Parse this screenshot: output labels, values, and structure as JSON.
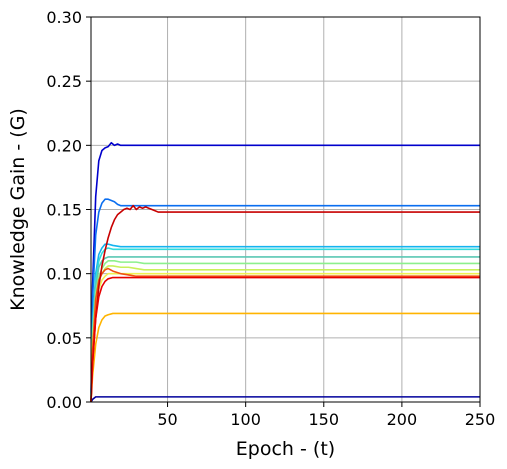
{
  "chart_data": {
    "type": "line",
    "title": "",
    "xlabel": "Epoch - (t)",
    "ylabel": "Knowledge Gain - (G)",
    "xlim": [
      1,
      250
    ],
    "ylim": [
      0,
      0.3
    ],
    "xticks": [
      50,
      100,
      150,
      200,
      250
    ],
    "yticks": [
      0.0,
      0.05,
      0.1,
      0.15,
      0.2,
      0.25,
      0.3
    ],
    "ytick_labels": [
      "0.00",
      "0.05",
      "0.10",
      "0.15",
      "0.20",
      "0.25",
      "0.30"
    ],
    "grid": true,
    "legend": "none",
    "series": [
      {
        "color": "#00009c",
        "x": [
          1,
          2,
          3,
          4,
          250
        ],
        "values": [
          0.0,
          0.002,
          0.003,
          0.004,
          0.004
        ]
      },
      {
        "color": "#0000cc",
        "x": [
          1,
          2,
          4,
          6,
          8,
          10,
          12,
          14,
          16,
          18,
          20,
          25,
          30,
          250
        ],
        "values": [
          0.0,
          0.09,
          0.16,
          0.188,
          0.196,
          0.198,
          0.199,
          0.202,
          0.2,
          0.201,
          0.2,
          0.2,
          0.2,
          0.2
        ]
      },
      {
        "color": "#0a6ef0",
        "x": [
          1,
          2,
          4,
          6,
          8,
          10,
          12,
          14,
          16,
          18,
          20,
          25,
          30,
          250
        ],
        "values": [
          0.0,
          0.08,
          0.13,
          0.148,
          0.155,
          0.158,
          0.158,
          0.157,
          0.156,
          0.154,
          0.153,
          0.153,
          0.153,
          0.153
        ]
      },
      {
        "color": "#14b4f0",
        "x": [
          1,
          2,
          4,
          6,
          8,
          10,
          12,
          15,
          20,
          30,
          250
        ],
        "values": [
          0.0,
          0.06,
          0.1,
          0.115,
          0.12,
          0.123,
          0.123,
          0.122,
          0.121,
          0.121,
          0.121
        ]
      },
      {
        "color": "#32dcdc",
        "x": [
          1,
          2,
          4,
          6,
          8,
          10,
          12,
          15,
          20,
          30,
          250
        ],
        "values": [
          0.0,
          0.055,
          0.095,
          0.11,
          0.116,
          0.119,
          0.12,
          0.119,
          0.119,
          0.119,
          0.119
        ]
      },
      {
        "color": "#5ac8b4",
        "x": [
          1,
          2,
          4,
          6,
          8,
          10,
          12,
          15,
          20,
          30,
          250
        ],
        "values": [
          0.0,
          0.05,
          0.09,
          0.105,
          0.11,
          0.112,
          0.113,
          0.113,
          0.113,
          0.113,
          0.113
        ]
      },
      {
        "color": "#8cf08c",
        "x": [
          1,
          2,
          4,
          6,
          8,
          10,
          12,
          16,
          20,
          25,
          30,
          35,
          250
        ],
        "values": [
          0.0,
          0.05,
          0.085,
          0.098,
          0.104,
          0.108,
          0.11,
          0.11,
          0.109,
          0.109,
          0.109,
          0.108,
          0.108
        ]
      },
      {
        "color": "#c8f05a",
        "x": [
          1,
          2,
          4,
          6,
          8,
          10,
          12,
          15,
          20,
          25,
          30,
          35,
          40,
          250
        ],
        "values": [
          0.0,
          0.045,
          0.08,
          0.094,
          0.1,
          0.104,
          0.106,
          0.106,
          0.105,
          0.105,
          0.104,
          0.103,
          0.103,
          0.103
        ]
      },
      {
        "color": "#f0f050",
        "x": [
          1,
          2,
          4,
          6,
          8,
          10,
          12,
          15,
          20,
          25,
          30,
          250
        ],
        "values": [
          0.0,
          0.04,
          0.075,
          0.088,
          0.095,
          0.098,
          0.1,
          0.1,
          0.1,
          0.1,
          0.1,
          0.1
        ]
      },
      {
        "color": "#ffb400",
        "x": [
          1,
          2,
          4,
          6,
          8,
          10,
          12,
          15,
          18,
          20,
          25,
          30,
          250
        ],
        "values": [
          0.0,
          0.02,
          0.045,
          0.058,
          0.064,
          0.067,
          0.068,
          0.069,
          0.069,
          0.069,
          0.069,
          0.069,
          0.069
        ]
      },
      {
        "color": "#f05014",
        "x": [
          1,
          2,
          4,
          6,
          8,
          10,
          12,
          15,
          20,
          25,
          30,
          250
        ],
        "values": [
          0.0,
          0.04,
          0.08,
          0.095,
          0.1,
          0.103,
          0.104,
          0.102,
          0.1,
          0.099,
          0.098,
          0.098
        ]
      },
      {
        "color": "#c80000",
        "x": [
          1,
          2,
          4,
          6,
          8,
          10,
          12,
          14,
          16,
          18,
          20,
          22,
          24,
          26,
          28,
          30,
          32,
          34,
          36,
          38,
          40,
          42,
          44,
          250
        ],
        "values": [
          0.0,
          0.03,
          0.065,
          0.09,
          0.106,
          0.118,
          0.128,
          0.136,
          0.142,
          0.146,
          0.148,
          0.15,
          0.151,
          0.15,
          0.153,
          0.15,
          0.152,
          0.151,
          0.152,
          0.151,
          0.15,
          0.149,
          0.148,
          0.148
        ]
      },
      {
        "color": "#e60000",
        "x": [
          1,
          2,
          4,
          6,
          8,
          10,
          12,
          15,
          18,
          20,
          25,
          30,
          250
        ],
        "values": [
          0.0,
          0.03,
          0.065,
          0.082,
          0.09,
          0.094,
          0.096,
          0.097,
          0.097,
          0.097,
          0.097,
          0.097,
          0.097
        ]
      }
    ]
  }
}
